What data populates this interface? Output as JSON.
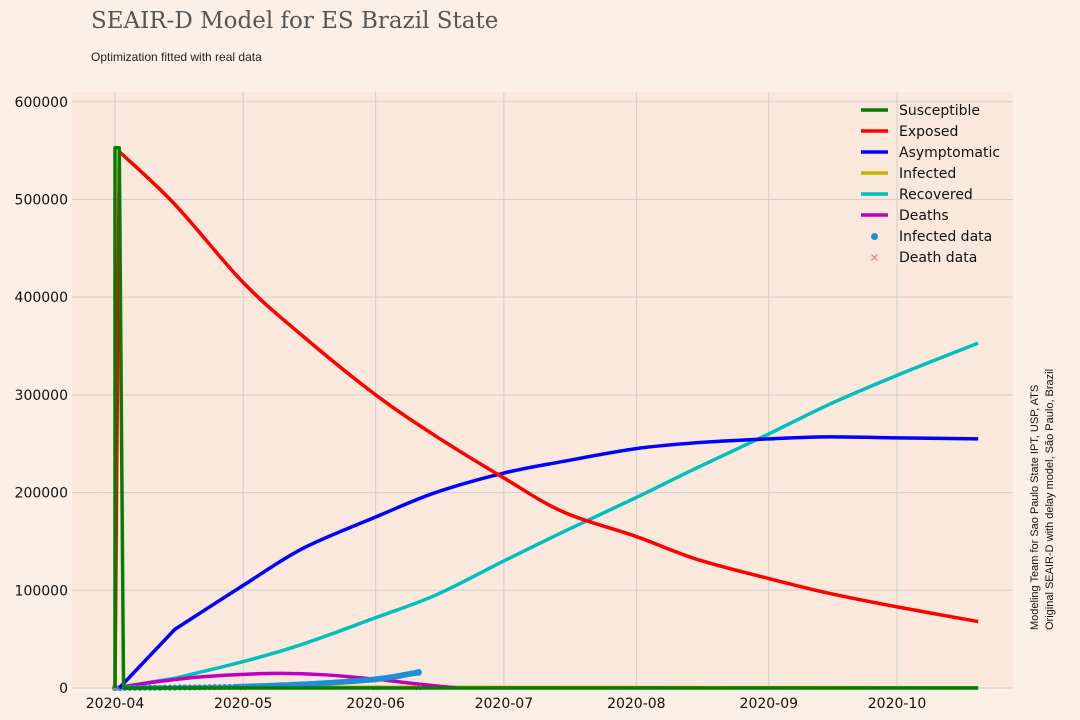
{
  "chart_data": {
    "type": "line",
    "title": "SEAIR-D Model for ES Brazil State",
    "subtitle": "Optimization fitted with real data",
    "side_notes": [
      "Modeling Team for Sao Paulo State IPT, USP, ATS",
      "Original SEAIR-D with delay model, São Paulo, Brazil"
    ],
    "xlabel": "",
    "ylabel": "",
    "x_tick_labels": [
      "2020-04",
      "2020-05",
      "2020-06",
      "2020-07",
      "2020-08",
      "2020-09",
      "2020-10"
    ],
    "y_tick_labels": [
      "0",
      "100000",
      "200000",
      "300000",
      "400000",
      "500000",
      "600000"
    ],
    "ylim": [
      0,
      610000
    ],
    "grid": true,
    "legend_position": "top-right",
    "series": [
      {
        "name": "Susceptible",
        "color": "#008000",
        "style": "line",
        "points": [
          [
            "2020-04-01",
            0
          ],
          [
            "2020-04-01",
            553000
          ],
          [
            "2020-04-02",
            553000
          ],
          [
            "2020-04-03",
            0
          ],
          [
            "2020-10-20",
            0
          ]
        ]
      },
      {
        "name": "Exposed",
        "color": "#ff0000",
        "style": "line",
        "points": [
          [
            "2020-04-01",
            0
          ],
          [
            "2020-04-02",
            549000
          ],
          [
            "2020-04-15",
            495000
          ],
          [
            "2020-05-01",
            415000
          ],
          [
            "2020-05-15",
            360000
          ],
          [
            "2020-06-01",
            300000
          ],
          [
            "2020-06-15",
            258000
          ],
          [
            "2020-07-01",
            215000
          ],
          [
            "2020-07-15",
            180000
          ],
          [
            "2020-08-01",
            155000
          ],
          [
            "2020-08-15",
            132000
          ],
          [
            "2020-09-01",
            112000
          ],
          [
            "2020-09-15",
            97000
          ],
          [
            "2020-10-01",
            83000
          ],
          [
            "2020-10-20",
            68000
          ]
        ]
      },
      {
        "name": "Asymptomatic",
        "color": "#0000ff",
        "style": "line",
        "points": [
          [
            "2020-04-02",
            0
          ],
          [
            "2020-04-15",
            60000
          ],
          [
            "2020-05-01",
            105000
          ],
          [
            "2020-05-15",
            143000
          ],
          [
            "2020-06-01",
            175000
          ],
          [
            "2020-06-15",
            200000
          ],
          [
            "2020-07-01",
            220000
          ],
          [
            "2020-07-15",
            232000
          ],
          [
            "2020-08-01",
            245000
          ],
          [
            "2020-08-15",
            251000
          ],
          [
            "2020-09-01",
            255000
          ],
          [
            "2020-09-15",
            257000
          ],
          [
            "2020-10-01",
            256000
          ],
          [
            "2020-10-20",
            255000
          ]
        ]
      },
      {
        "name": "Infected",
        "color": "#c8b400",
        "style": "line",
        "points": [
          [
            "2020-04-01",
            0
          ],
          [
            "2020-05-01",
            500
          ],
          [
            "2020-06-01",
            800
          ],
          [
            "2020-07-01",
            600
          ],
          [
            "2020-10-20",
            200
          ]
        ]
      },
      {
        "name": "Recovered",
        "color": "#00bfbf",
        "style": "line",
        "points": [
          [
            "2020-04-01",
            0
          ],
          [
            "2020-04-15",
            10000
          ],
          [
            "2020-05-01",
            27000
          ],
          [
            "2020-05-15",
            45000
          ],
          [
            "2020-06-01",
            72000
          ],
          [
            "2020-06-15",
            95000
          ],
          [
            "2020-07-01",
            130000
          ],
          [
            "2020-07-15",
            160000
          ],
          [
            "2020-08-01",
            195000
          ],
          [
            "2020-08-15",
            225000
          ],
          [
            "2020-09-01",
            260000
          ],
          [
            "2020-09-15",
            290000
          ],
          [
            "2020-10-01",
            320000
          ],
          [
            "2020-10-20",
            353000
          ]
        ]
      },
      {
        "name": "Deaths",
        "color": "#bf00bf",
        "style": "line",
        "points": [
          [
            "2020-04-01",
            0
          ],
          [
            "2020-04-10",
            6000
          ],
          [
            "2020-04-20",
            11000
          ],
          [
            "2020-05-01",
            14000
          ],
          [
            "2020-05-10",
            15000
          ],
          [
            "2020-05-20",
            13500
          ],
          [
            "2020-06-01",
            9000
          ],
          [
            "2020-06-10",
            4500
          ],
          [
            "2020-06-20",
            0
          ]
        ]
      },
      {
        "name": "Infected data",
        "color": "#1f8fd6",
        "style": "scatter-dot",
        "points": [
          [
            "2020-04-01",
            0
          ],
          [
            "2020-04-08",
            200
          ],
          [
            "2020-04-15",
            400
          ],
          [
            "2020-04-22",
            700
          ],
          [
            "2020-04-29",
            1200
          ],
          [
            "2020-05-03",
            1700
          ],
          [
            "2020-05-07",
            2300
          ],
          [
            "2020-05-11",
            3000
          ],
          [
            "2020-05-15",
            3800
          ],
          [
            "2020-05-19",
            4700
          ],
          [
            "2020-05-23",
            5800
          ],
          [
            "2020-05-27",
            7000
          ],
          [
            "2020-05-31",
            8500
          ],
          [
            "2020-06-03",
            10000
          ],
          [
            "2020-06-06",
            12000
          ],
          [
            "2020-06-09",
            14500
          ],
          [
            "2020-06-11",
            16000
          ]
        ]
      },
      {
        "name": "Death data",
        "color": "#ff6b6b",
        "style": "scatter-x",
        "points": [
          [
            "2020-04-01",
            0
          ],
          [
            "2020-05-01",
            50
          ],
          [
            "2020-06-01",
            200
          ],
          [
            "2020-06-11",
            300
          ]
        ]
      }
    ]
  }
}
